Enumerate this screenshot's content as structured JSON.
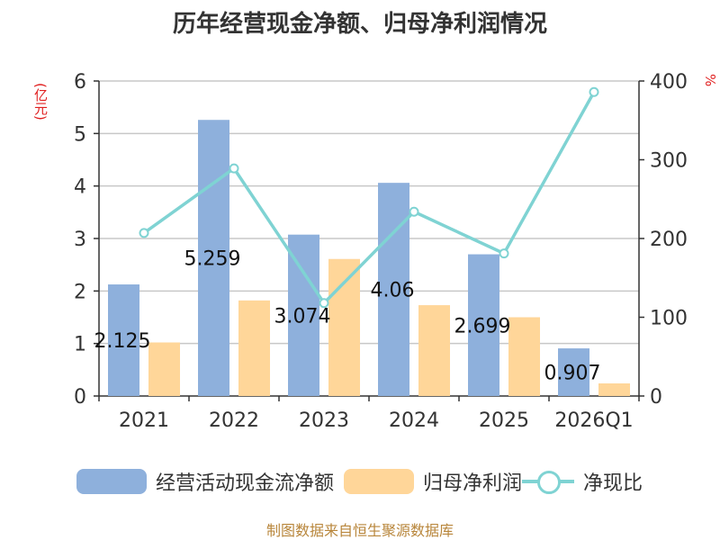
{
  "title": "历年经营现金净额、归母净利润情况",
  "source": "制图数据来自恒生聚源数据库",
  "colors": {
    "bar1": "#8eb0dc",
    "bar2": "#ffd699",
    "line": "#7fd3d3",
    "axis": "#333333",
    "grid": "#c8c8c8",
    "unit": "#e02020"
  },
  "chart_data": {
    "type": "bar",
    "title": "历年经营现金净额、归母净利润情况",
    "categories": [
      "2021",
      "2022",
      "2023",
      "2024",
      "2025",
      "2026Q1"
    ],
    "y_left": {
      "label": "(亿元)",
      "lim": [
        0,
        6
      ],
      "ticks": [
        "0",
        "1",
        "2",
        "3",
        "4",
        "5",
        "6"
      ]
    },
    "y_right": {
      "label": "%",
      "lim": [
        0,
        400
      ],
      "ticks": [
        "0",
        "100",
        "200",
        "300",
        "400"
      ]
    },
    "series": [
      {
        "name": "经营活动现金流净额",
        "type": "bar",
        "axis": "left",
        "values": [
          2.125,
          5.259,
          3.074,
          4.06,
          2.699,
          0.907
        ],
        "labels": [
          "2.125",
          "5.259",
          "3.074",
          "4.06",
          "2.699",
          "0.907"
        ]
      },
      {
        "name": "归母净利润",
        "type": "bar",
        "axis": "left",
        "values": [
          1.02,
          1.82,
          2.61,
          1.73,
          1.5,
          0.24
        ]
      },
      {
        "name": "净现比",
        "type": "line",
        "axis": "right",
        "values": [
          207,
          289,
          118,
          234,
          181,
          386
        ]
      }
    ],
    "legend": "bottom",
    "grid": true
  }
}
